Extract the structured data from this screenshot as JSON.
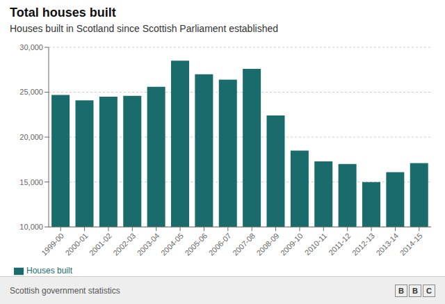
{
  "chart_data": {
    "type": "bar",
    "title": "Total houses built",
    "subtitle": "Houses built in Scotland since Scottish Parliament established",
    "categories": [
      "1999-00",
      "2000-01",
      "2001-02",
      "2002-03",
      "2003-04",
      "2004-05",
      "2005-06",
      "2006-07",
      "2007-08",
      "2008-09",
      "2009-10",
      "2010-11",
      "2011-12",
      "2012-13",
      "2013-14",
      "2014-15"
    ],
    "series": [
      {
        "name": "Houses built",
        "color": "#1a6b6b",
        "values": [
          24700,
          24100,
          24500,
          24600,
          25600,
          28500,
          27000,
          26400,
          27600,
          22400,
          18500,
          17300,
          17000,
          15000,
          16100,
          17100
        ]
      }
    ],
    "ylim": [
      10000,
      30000
    ],
    "yticks": [
      {
        "value": 10000,
        "label": "10,000"
      },
      {
        "value": 15000,
        "label": "15,000"
      },
      {
        "value": 20000,
        "label": "20,000"
      },
      {
        "value": 25000,
        "label": "25,000"
      },
      {
        "value": 30000,
        "label": "30,000"
      }
    ],
    "grid": true,
    "legend": "bottom",
    "annotations": [
      "Scottish government statistics",
      "BBC"
    ]
  }
}
